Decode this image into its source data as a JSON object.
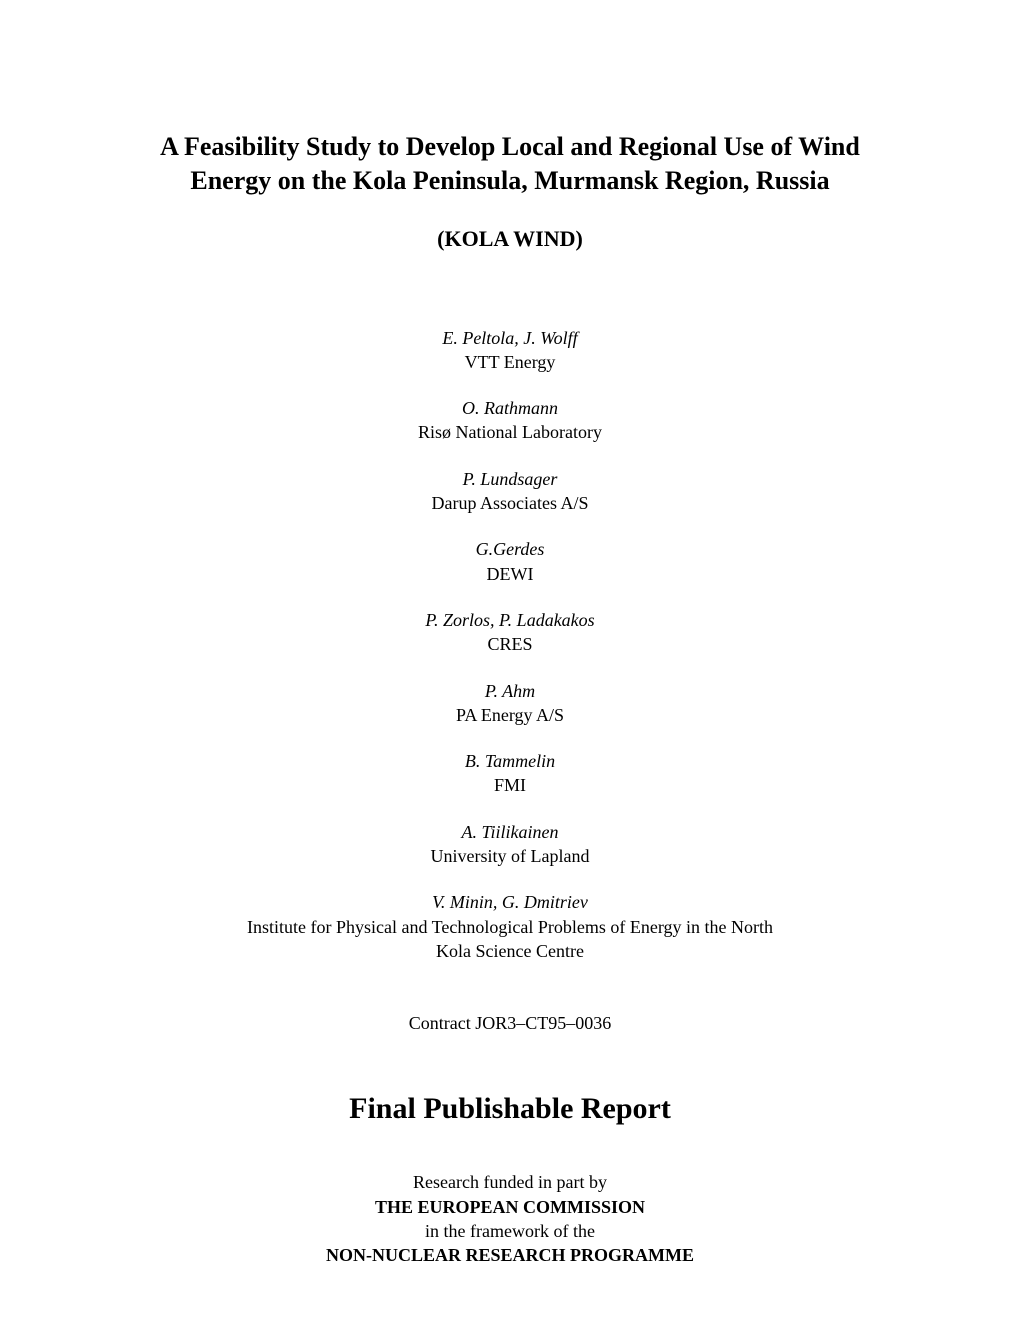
{
  "title": "A Feasibility Study to Develop Local and Regional Use of Wind Energy on the Kola Peninsula, Murmansk Region, Russia",
  "subtitle": "(KOLA WIND)",
  "authors": [
    {
      "names": "E. Peltola, J. Wolff",
      "affiliation": "VTT Energy"
    },
    {
      "names": "O. Rathmann",
      "affiliation": "Risø National Laboratory"
    },
    {
      "names": "P. Lundsager",
      "affiliation": "Darup Associates A/S"
    },
    {
      "names": "G.Gerdes",
      "affiliation": "DEWI"
    },
    {
      "names": "P. Zorlos, P. Ladakakos",
      "affiliation": "CRES"
    },
    {
      "names": "P. Ahm",
      "affiliation": "PA Energy A/S"
    },
    {
      "names": "B. Tammelin",
      "affiliation": "FMI"
    },
    {
      "names": "A. Tiilikainen",
      "affiliation": "University of Lapland"
    },
    {
      "names": "V. Minin, G. Dmitriev",
      "affiliation": "Institute for Physical and Technological Problems of Energy in the North\nKola Science Centre"
    }
  ],
  "contract": "Contract JOR3–CT95–0036",
  "report_label": "Final Publishable Report",
  "funding": {
    "line1": "Research funded in part by",
    "line2": "THE EUROPEAN COMMISSION",
    "line3": "in the framework of the",
    "line4": "NON-NUCLEAR RESEARCH PROGRAMME"
  }
}
